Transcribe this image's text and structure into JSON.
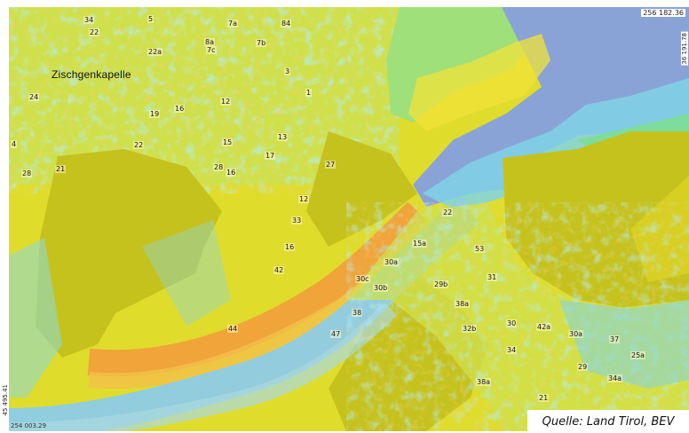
{
  "map": {
    "place_name": "Zischgenkapelle",
    "coordinates": {
      "top_right": "256 182.36",
      "bottom_left": "254 003.29",
      "left_edge": "45 495.41",
      "right_edge": "36 191.78"
    },
    "source": "Quelle: Land Tirol, BEV",
    "house_numbers": [
      "34",
      "5",
      "7a",
      "84",
      "22",
      "8a",
      "7b",
      "22a",
      "7c",
      "3",
      "1",
      "24",
      "19",
      "16",
      "12",
      "4",
      "15",
      "22",
      "28",
      "21",
      "28",
      "16",
      "17",
      "27",
      "13",
      "12",
      "33",
      "22",
      "15a",
      "16",
      "42",
      "30a",
      "30c",
      "30b",
      "29b",
      "38",
      "44",
      "38a",
      "53",
      "31",
      "42a",
      "47",
      "32b",
      "30",
      "30a",
      "37",
      "34",
      "29",
      "25a",
      "34a",
      "38a",
      "21"
    ],
    "colors": {
      "terrain_yellow": "#e0dc2c",
      "olive": "#c6c21d",
      "orange": "#f0a43a",
      "cyan": "#7fd4e6",
      "blue": "#8aa3d6",
      "green": "#9fe07a"
    }
  }
}
